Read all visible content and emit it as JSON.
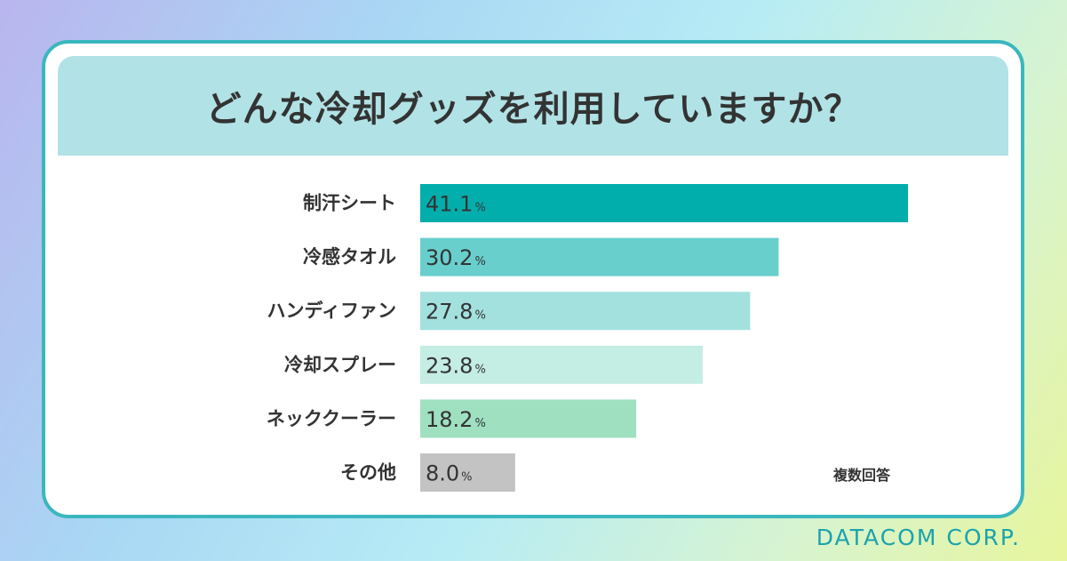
{
  "chart_data": {
    "type": "bar",
    "orientation": "horizontal",
    "title": "どんな冷却グッズを利用していますか？",
    "categories": [
      "制汗シート",
      "冷感タオル",
      "ハンディファン",
      "冷却スプレー",
      "ネッククーラー",
      "その他"
    ],
    "values": [
      41.1,
      30.2,
      27.8,
      23.8,
      18.2,
      8.0
    ],
    "value_labels": [
      "41.1",
      "30.2",
      "27.8",
      "23.8",
      "18.2",
      "8.0"
    ],
    "unit": "%",
    "colors": [
      "#02aeac",
      "#68cfcd",
      "#a3e1df",
      "#c4ede3",
      "#9fe0c1",
      "#c3c3c3"
    ],
    "note": "複数回答"
  },
  "brand": "DATACOM CORP."
}
